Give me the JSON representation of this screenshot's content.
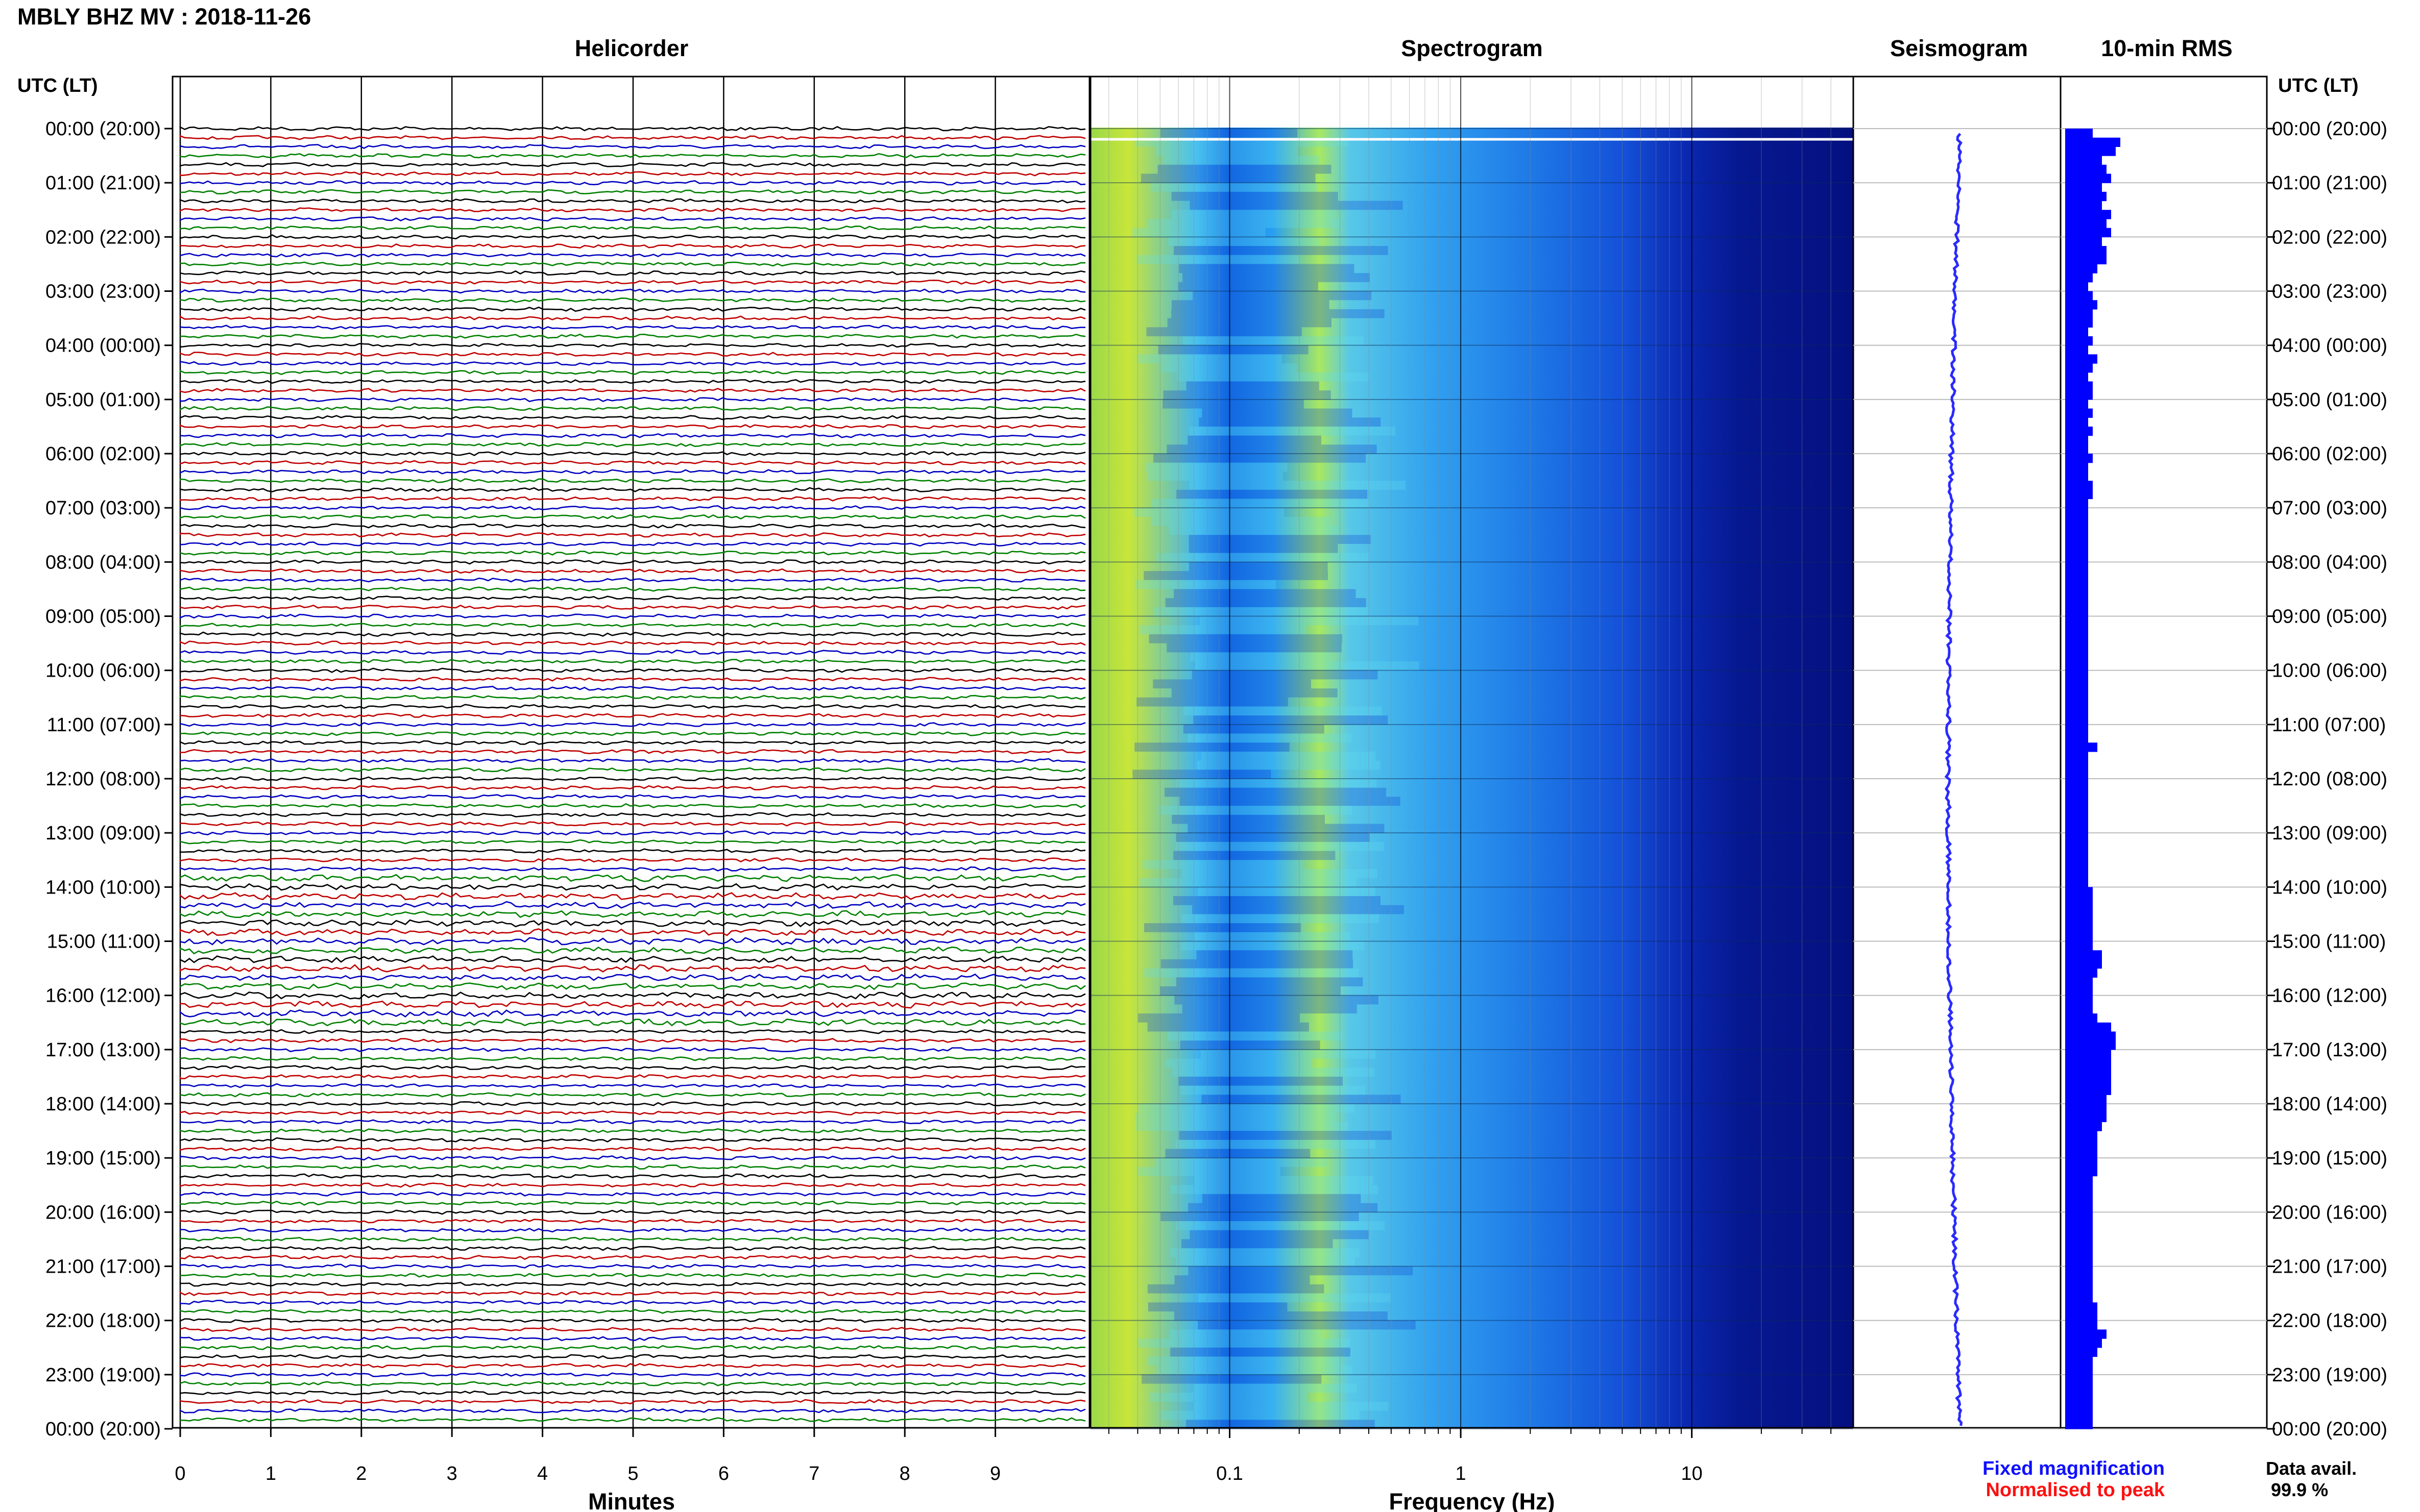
{
  "header": {
    "title": "MBLY BHZ MV : 2018-11-26"
  },
  "panels": {
    "helicorder": "Helicorder",
    "spectrogram": "Spectrogram",
    "seismogram": "Seismogram",
    "rms": "10-min RMS"
  },
  "axes": {
    "time_label_left": "UTC (LT)",
    "time_label_right": "UTC (LT)",
    "hour_labels": [
      "00:00 (20:00)",
      "01:00 (21:00)",
      "02:00 (22:00)",
      "03:00 (23:00)",
      "04:00 (00:00)",
      "05:00 (01:00)",
      "06:00 (02:00)",
      "07:00 (03:00)",
      "08:00 (04:00)",
      "09:00 (05:00)",
      "10:00 (06:00)",
      "11:00 (07:00)",
      "12:00 (08:00)",
      "13:00 (09:00)",
      "14:00 (10:00)",
      "15:00 (11:00)",
      "16:00 (12:00)",
      "17:00 (13:00)",
      "18:00 (14:00)",
      "19:00 (15:00)",
      "20:00 (16:00)",
      "21:00 (17:00)",
      "22:00 (18:00)",
      "23:00 (19:00)",
      "00:00 (20:00)"
    ],
    "minutes_label": "Minutes",
    "minute_ticks": [
      "0",
      "1",
      "2",
      "3",
      "4",
      "5",
      "6",
      "7",
      "8",
      "9"
    ],
    "frequency_label": "Frequency (Hz)",
    "frequency_ticks": [
      "0.1",
      "1",
      "10"
    ]
  },
  "legend": {
    "fixed": "Fixed magnification",
    "normalised": "Normalised to peak",
    "availability_label": "Data avail.",
    "availability_value": "99.9 %",
    "colors": {
      "fixed": "#1010ff",
      "normalised": "#ff1010"
    }
  },
  "chart_data": {
    "type": "heatmap",
    "title": "MBLY BHZ MV : 2018-11-26",
    "helicorder": {
      "minutes_per_line": 10,
      "lines": 144,
      "line_colors": [
        "#000000",
        "#c00000",
        "#0000c0",
        "#008000"
      ],
      "xlim": [
        0,
        10
      ],
      "xlabel": "Minutes"
    },
    "spectrogram": {
      "xlabel": "Frequency (Hz)",
      "xscale": "log",
      "xlim": [
        0.025,
        50
      ],
      "colormap": [
        "#00008b",
        "#0000ff",
        "#00bfff",
        "#7fffd4",
        "#ffff00"
      ]
    },
    "rms_10min": {
      "color": "#0000ff",
      "values": [
        0.6,
        1.2,
        1.1,
        0.8,
        0.9,
        1.0,
        0.8,
        0.9,
        0.8,
        1.0,
        0.9,
        1.0,
        0.8,
        0.9,
        0.9,
        0.7,
        0.6,
        0.5,
        0.6,
        0.7,
        0.6,
        0.6,
        0.5,
        0.6,
        0.5,
        0.7,
        0.6,
        0.5,
        0.6,
        0.6,
        0.5,
        0.6,
        0.5,
        0.6,
        0.5,
        0.5,
        0.6,
        0.5,
        0.5,
        0.6,
        0.6,
        0.5,
        0.5,
        0.5,
        0.5,
        0.5,
        0.5,
        0.5,
        0.5,
        0.5,
        0.5,
        0.5,
        0.5,
        0.5,
        0.5,
        0.5,
        0.5,
        0.5,
        0.5,
        0.5,
        0.5,
        0.5,
        0.5,
        0.5,
        0.5,
        0.5,
        0.5,
        0.5,
        0.7,
        0.5,
        0.5,
        0.5,
        0.5,
        0.5,
        0.5,
        0.5,
        0.5,
        0.5,
        0.5,
        0.5,
        0.5,
        0.5,
        0.5,
        0.5,
        0.6,
        0.6,
        0.6,
        0.6,
        0.6,
        0.6,
        0.6,
        0.8,
        0.8,
        0.7,
        0.6,
        0.6,
        0.6,
        0.6,
        0.7,
        1.0,
        1.1,
        1.1,
        1.0,
        1.0,
        1.0,
        1.0,
        1.0,
        0.9,
        0.9,
        0.9,
        0.8,
        0.7,
        0.7,
        0.7,
        0.7,
        0.7,
        0.6,
        0.6,
        0.6,
        0.6,
        0.6,
        0.6,
        0.6,
        0.6,
        0.6,
        0.6,
        0.6,
        0.6,
        0.6,
        0.6,
        0.7,
        0.7,
        0.7,
        0.9,
        0.8,
        0.7,
        0.6,
        0.6,
        0.6,
        0.6,
        0.6,
        0.6,
        0.6,
        0.6
      ]
    }
  }
}
